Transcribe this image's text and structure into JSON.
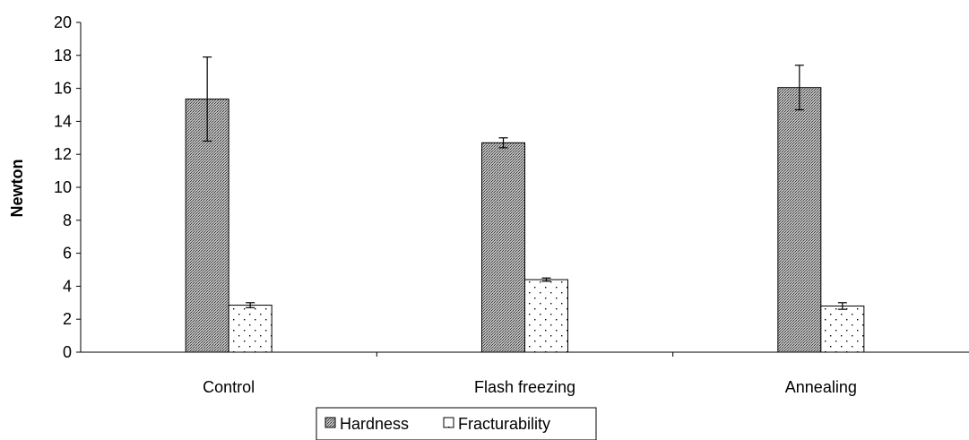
{
  "chart_data": {
    "type": "bar",
    "title": "",
    "xlabel": "",
    "ylabel": "Newton",
    "ylim": [
      0,
      20
    ],
    "yticks": [
      0,
      2,
      4,
      6,
      8,
      10,
      12,
      14,
      16,
      18,
      20
    ],
    "categories": [
      "Control",
      "Flash freezing",
      "Annealing"
    ],
    "series": [
      {
        "name": "Hardness",
        "values": [
          15.35,
          12.7,
          16.05
        ],
        "errors": [
          2.55,
          0.3,
          1.35
        ],
        "pattern": "crosshatch",
        "color": "#8c8c8c"
      },
      {
        "name": "Fracturability",
        "values": [
          2.85,
          4.4,
          2.8
        ],
        "errors": [
          0.15,
          0.1,
          0.2
        ],
        "pattern": "dots",
        "color": "#ffffff"
      }
    ],
    "grid": false,
    "legend": "bottom"
  }
}
